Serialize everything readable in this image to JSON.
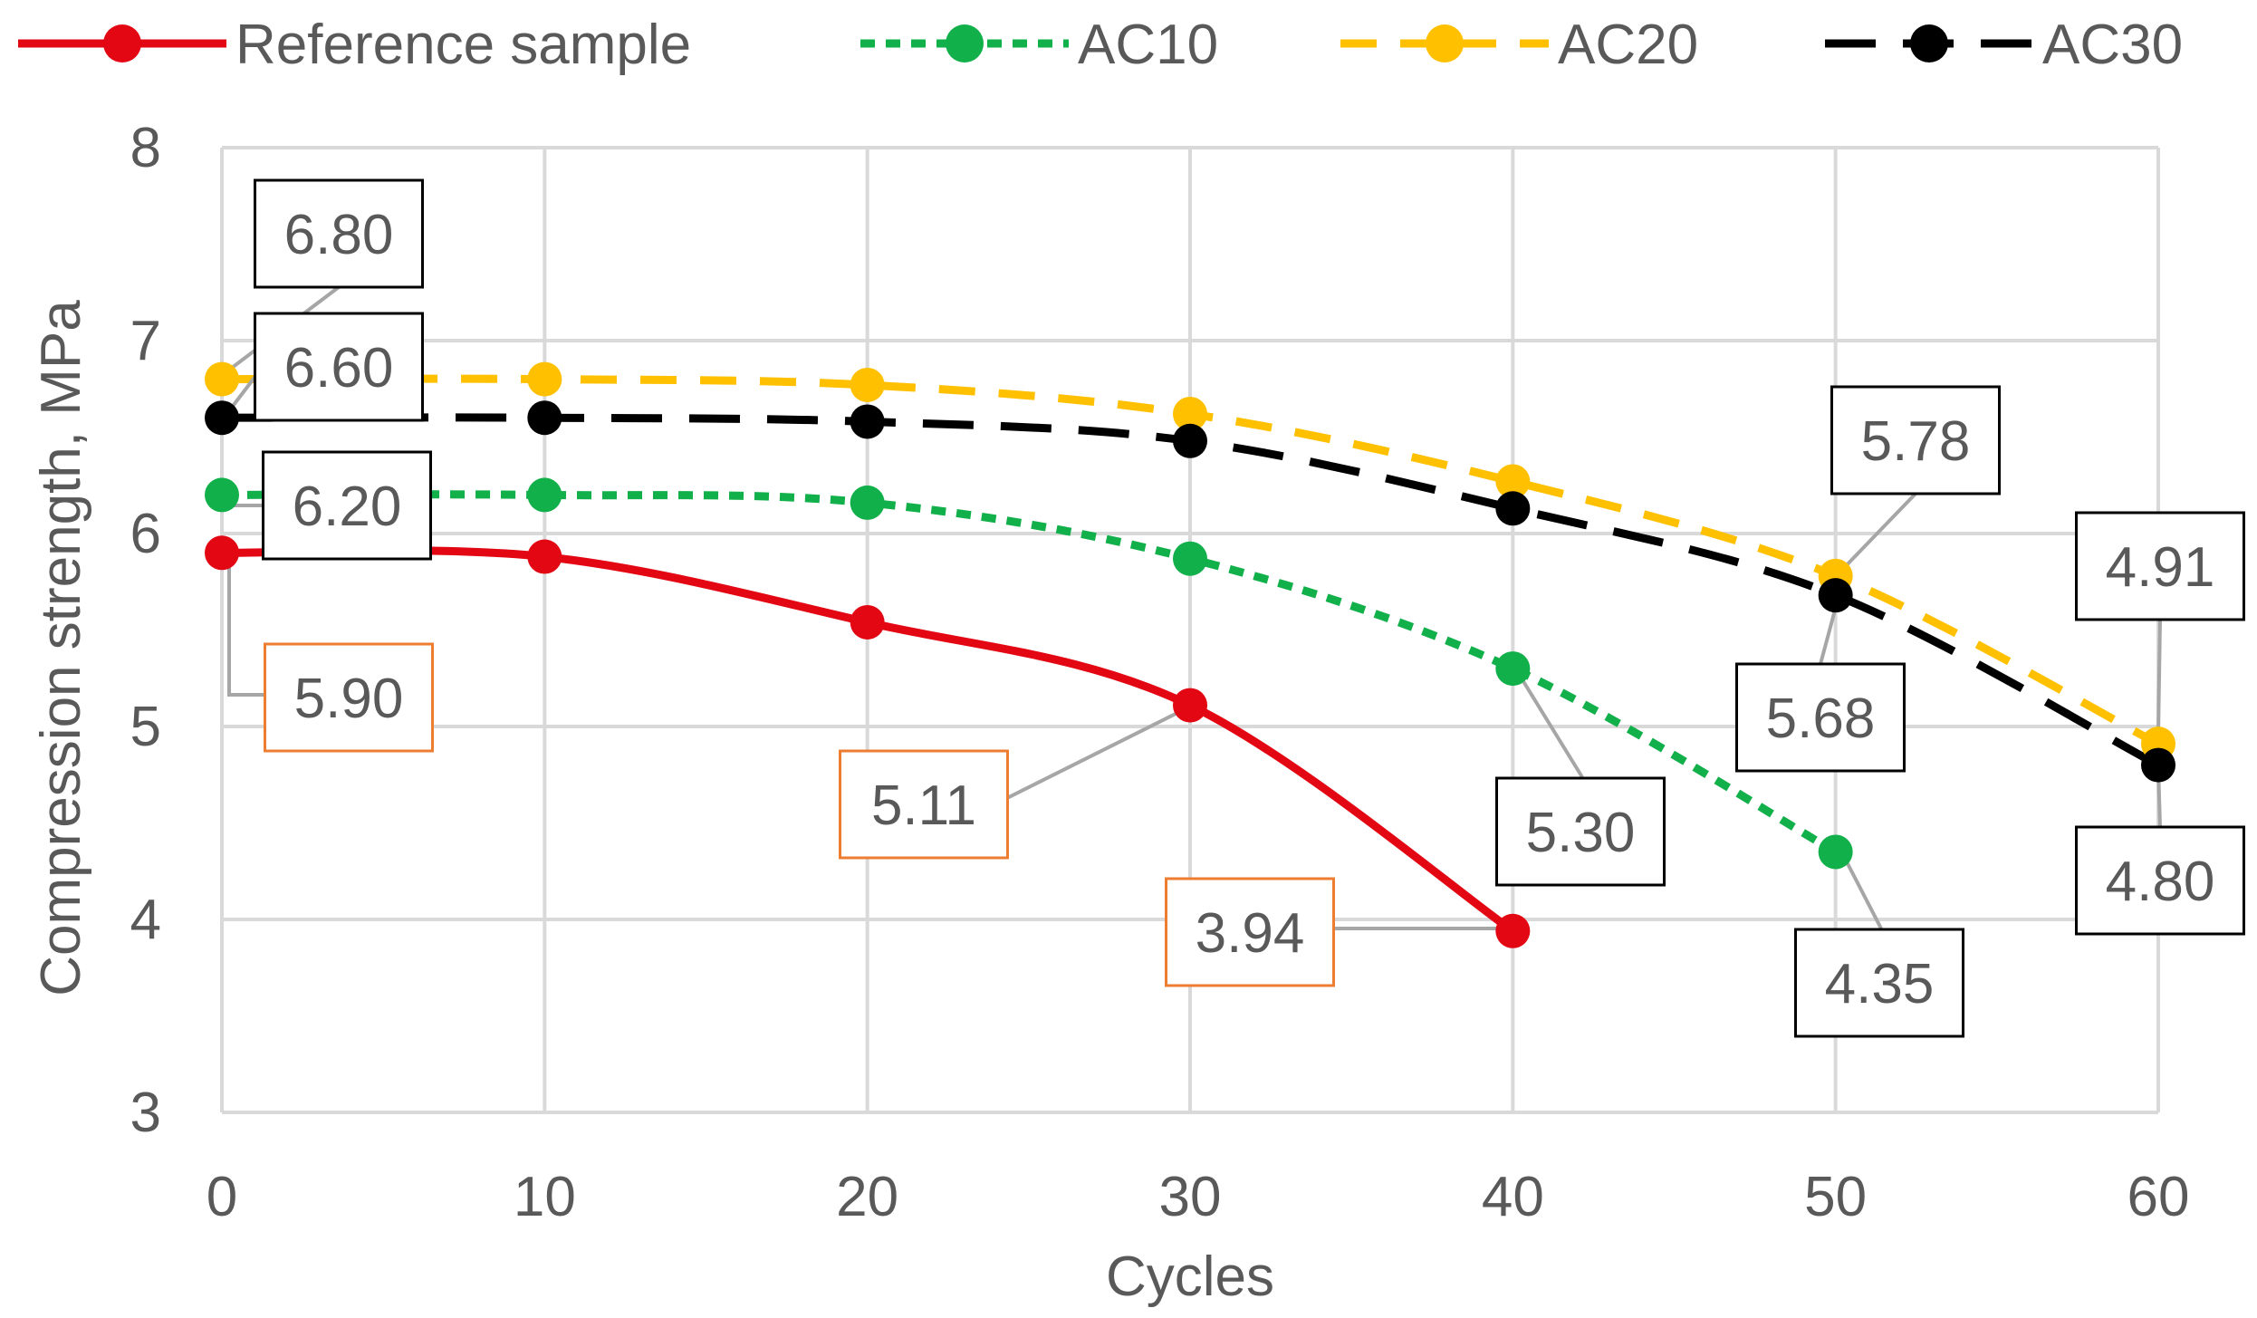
{
  "chart_data": {
    "type": "line",
    "title": "",
    "xlabel": "Cycles",
    "ylabel": "Compression strength, MPa",
    "xlim": [
      0,
      60
    ],
    "ylim": [
      3,
      8
    ],
    "x_ticks": [
      "0",
      "10",
      "20",
      "30",
      "40",
      "50",
      "60"
    ],
    "y_ticks": [
      "3",
      "4",
      "5",
      "6",
      "7",
      "8"
    ],
    "grid": true,
    "legend_position": "top",
    "series": [
      {
        "name": "Reference sample",
        "color": "#E30613",
        "dash": "solid",
        "x": [
          0,
          10,
          20,
          30,
          40
        ],
        "values": [
          5.9,
          5.88,
          5.54,
          5.11,
          3.94
        ],
        "labels": [
          {
            "x": 0,
            "text": "5.90"
          },
          {
            "x": 30,
            "text": "5.11"
          },
          {
            "x": 40,
            "text": "3.94"
          }
        ]
      },
      {
        "name": "AC10",
        "color": "#12B04A",
        "dash": "dot",
        "x": [
          0,
          10,
          20,
          30,
          40,
          50
        ],
        "values": [
          6.2,
          6.2,
          6.16,
          5.87,
          5.3,
          4.35
        ],
        "labels": [
          {
            "x": 0,
            "text": "6.20"
          },
          {
            "x": 40,
            "text": "5.30"
          },
          {
            "x": 50,
            "text": "4.35"
          }
        ]
      },
      {
        "name": "AC20",
        "color": "#FFC000",
        "dash": "dash",
        "x": [
          0,
          10,
          20,
          30,
          40,
          50,
          60
        ],
        "values": [
          6.8,
          6.8,
          6.77,
          6.62,
          6.27,
          5.78,
          4.91
        ],
        "labels": [
          {
            "x": 0,
            "text": "6.80"
          },
          {
            "x": 50,
            "text": "5.78"
          },
          {
            "x": 60,
            "text": "4.91"
          }
        ]
      },
      {
        "name": "AC30",
        "color": "#000000",
        "dash": "longdash",
        "x": [
          0,
          10,
          20,
          30,
          40,
          50,
          60
        ],
        "values": [
          6.6,
          6.6,
          6.58,
          6.48,
          6.13,
          5.68,
          4.8
        ],
        "labels": [
          {
            "x": 0,
            "text": "6.60"
          },
          {
            "x": 50,
            "text": "5.68"
          },
          {
            "x": 60,
            "text": "4.80"
          }
        ]
      }
    ]
  }
}
